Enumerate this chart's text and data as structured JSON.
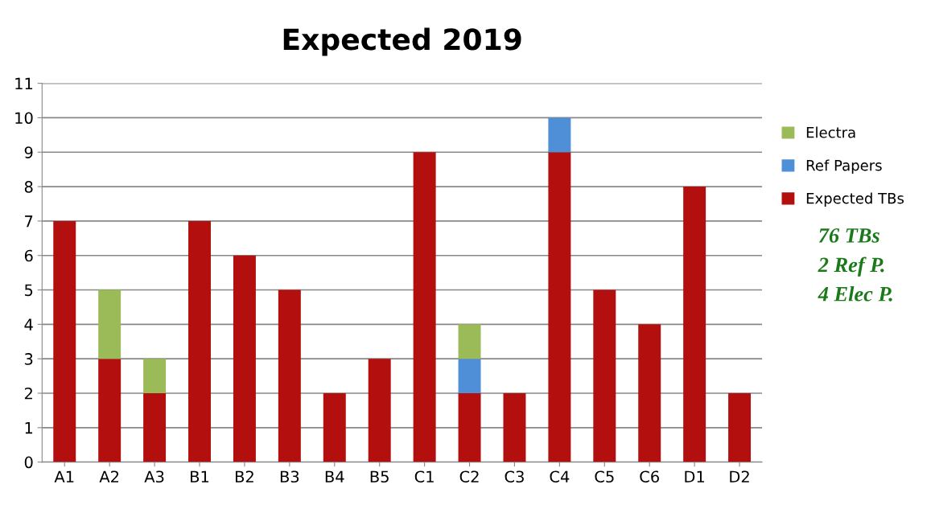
{
  "chart_data": {
    "type": "bar",
    "title": "Expected 2019",
    "stacked": true,
    "categories": [
      "A1",
      "A2",
      "A3",
      "B1",
      "B2",
      "B3",
      "B4",
      "B5",
      "C1",
      "C2",
      "C3",
      "C4",
      "C5",
      "C6",
      "D1",
      "D2"
    ],
    "series": [
      {
        "name": "Expected TBs",
        "color": "#b30f0f",
        "values": [
          7,
          3,
          2,
          7,
          6,
          5,
          2,
          3,
          9,
          2,
          2,
          9,
          5,
          4,
          8,
          2
        ]
      },
      {
        "name": "Ref Papers",
        "color": "#4f8fd8",
        "values": [
          0,
          0,
          0,
          0,
          0,
          0,
          0,
          0,
          0,
          1,
          0,
          1,
          0,
          0,
          0,
          0
        ]
      },
      {
        "name": "Electra",
        "color": "#9bbb59",
        "values": [
          0,
          2,
          1,
          0,
          0,
          0,
          0,
          0,
          0,
          1,
          0,
          0,
          0,
          0,
          0,
          0
        ]
      }
    ],
    "ylim": [
      0,
      11
    ],
    "yticks": [
      0,
      1,
      2,
      3,
      4,
      5,
      6,
      7,
      8,
      9,
      10,
      11
    ],
    "grid": "y",
    "legend": "right",
    "annotations": [
      "76 TBs",
      "2 Ref P.",
      "4 Elec P."
    ]
  }
}
